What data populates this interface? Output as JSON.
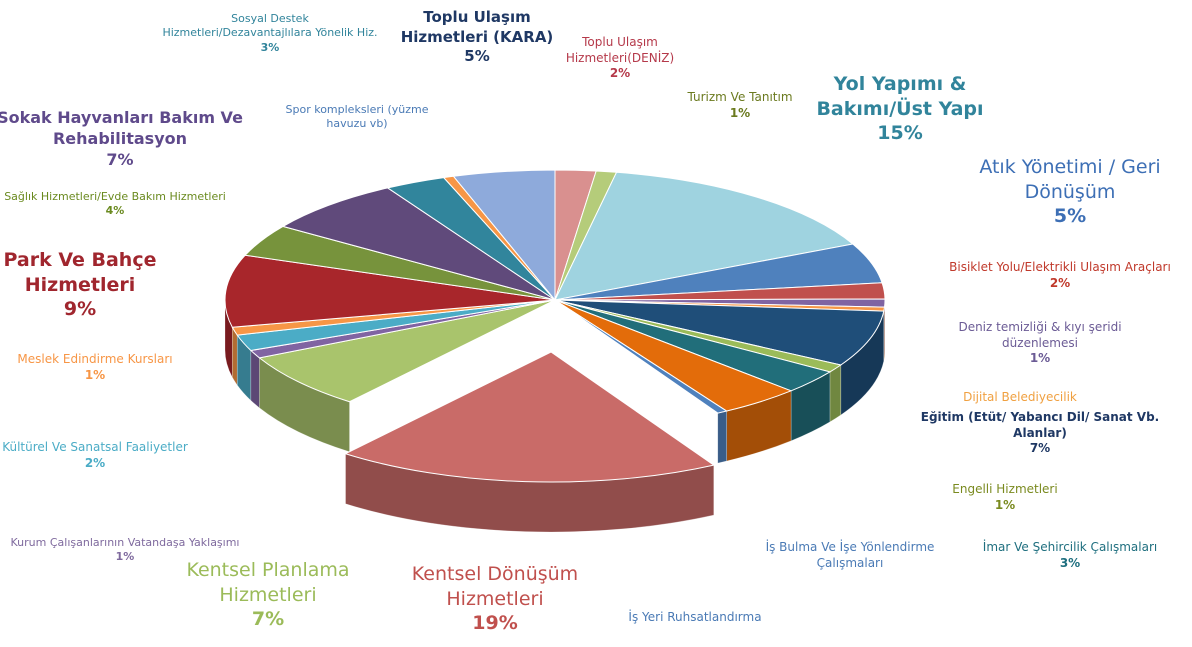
{
  "chart_data": {
    "type": "pie",
    "categories": [
      "Toplu Ulaşım Hizmetleri(DENİZ)",
      "Turizm Ve Tanıtım",
      "Yol Yapımı & Bakımı/Üst Yapı",
      "Atık Yönetimi / Geri Dönüşüm",
      "Bisiklet Yolu/Elektrikli Ulaşım Araçları",
      "Deniz temizliği & kıyı şeridi düzenlemesi",
      "Dijital Belediyecilik",
      "Eğitim (Etüt/ Yabancı Dil/ Sanat Vb. Alanlar)",
      "Engelli Hizmetleri",
      "İmar Ve Şehircilik Çalışmaları",
      "İş Bulma Ve İşe Yönlendirme Çalışmaları",
      "İş Yeri Ruhsatlandırma",
      "Kentsel Dönüşüm Hizmetleri",
      "Kentsel Planlama Hizmetleri",
      "Kurum Çalışanlarının Vatandaşa Yaklaşımı",
      "Kültürel Ve Sanatsal Faaliyetler",
      "Meslek Edindirme Kursları",
      "Park Ve Bahçe Hizmetleri",
      "Sağlık Hizmetleri/Evde Bakım Hizmetleri",
      "Sokak Hayvanları Bakım Ve Rehabilitasyon",
      "Sosyal Destek Hizmetleri/Dezavantajlılara Yönelik Hiz.",
      "Spor kompleksleri (yüzme havuzu vb)",
      "Toplu Ulaşım Hizmetleri (KARA)"
    ],
    "values": [
      2,
      1,
      15,
      5,
      2,
      1,
      0.5,
      7,
      1,
      3,
      4,
      0.5,
      19,
      7,
      1,
      2,
      1,
      9,
      4,
      7,
      3,
      0.5,
      5
    ],
    "value_labels": [
      "2%",
      "1%",
      "15%",
      "5%",
      "2%",
      "1%",
      null,
      "7%",
      "1%",
      "3%",
      null,
      null,
      "19%",
      "7%",
      "1%",
      "2%",
      "1%",
      "9%",
      "4%",
      "7%",
      "3%",
      null,
      "5%"
    ],
    "colors": [
      "#d9908f",
      "#b5cc7a",
      "#9fd3e0",
      "#4f81bd",
      "#c0504d",
      "#8064a2",
      "#f79646",
      "#1f4e79",
      "#9bbb59",
      "#216e7a",
      "#e36c0a",
      "#4f81bd",
      "#c96b68",
      "#a9c46c",
      "#8064a2",
      "#4bacc6",
      "#f79646",
      "#a8262b",
      "#77933c",
      "#604a7b",
      "#31859c",
      "#f79646",
      "#8eaadb"
    ]
  }
}
